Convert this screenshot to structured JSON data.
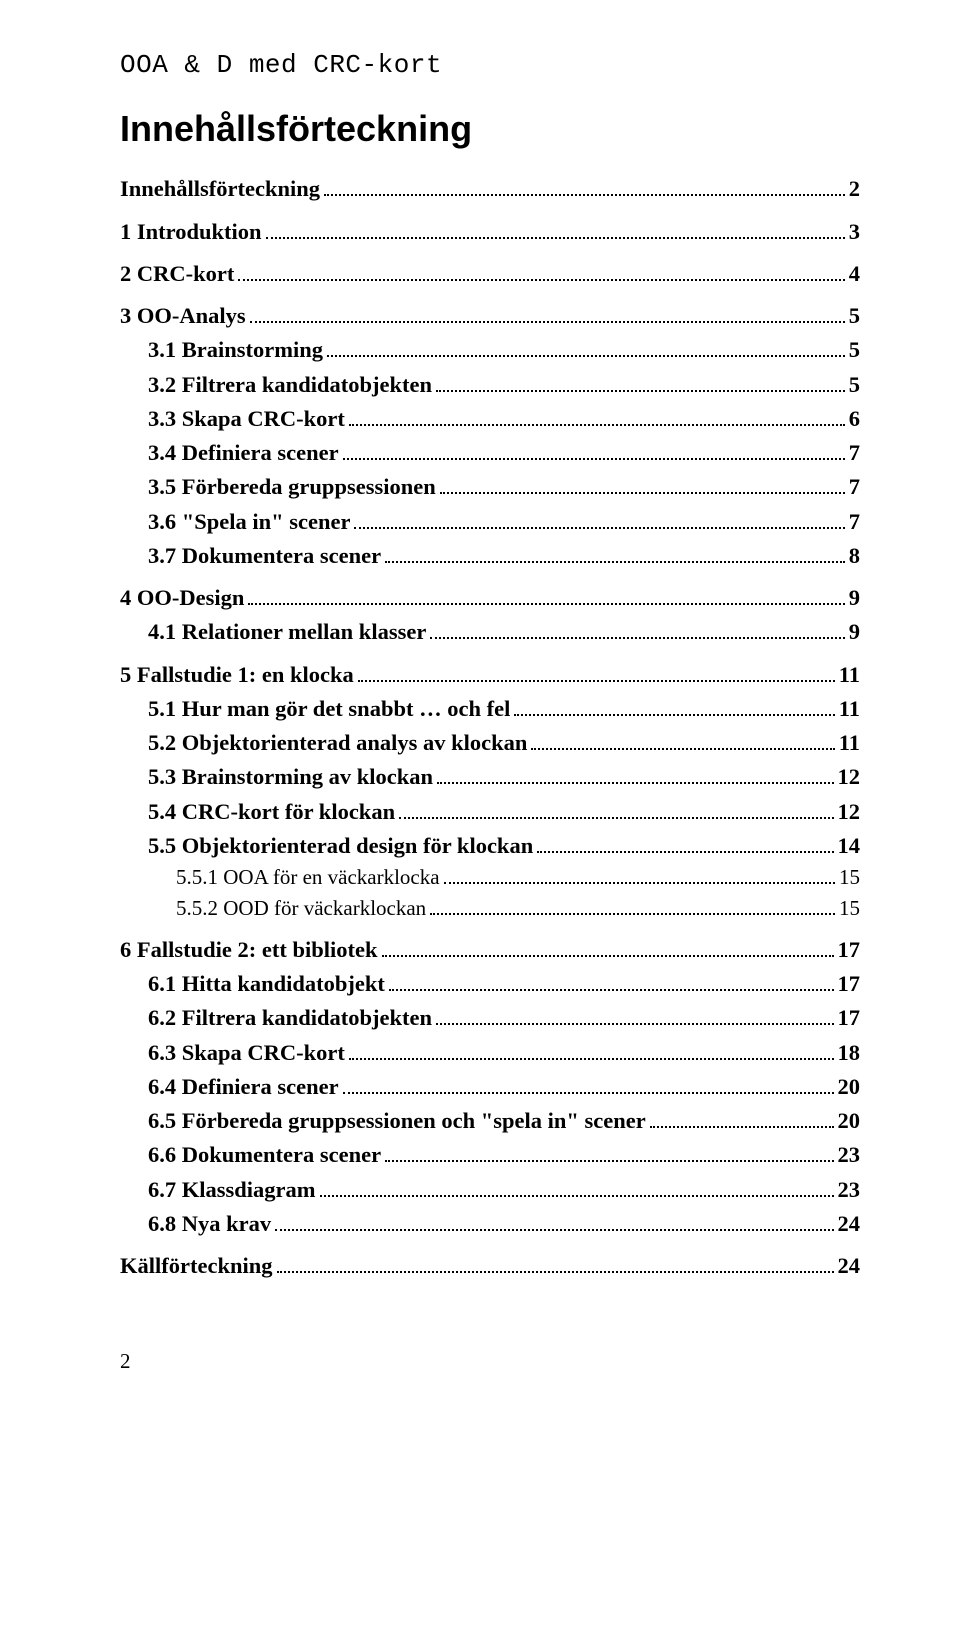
{
  "header": {
    "running_title": "OOA & D med CRC-kort"
  },
  "title": "Innehållsförteckning",
  "toc": [
    {
      "level": 1,
      "label": "Innehållsförteckning",
      "page": "2"
    },
    {
      "level": 1,
      "label": "1   Introduktion",
      "page": "3"
    },
    {
      "level": 1,
      "label": "2   CRC-kort",
      "page": "4"
    },
    {
      "level": 1,
      "label": "3   OO-Analys",
      "page": "5"
    },
    {
      "level": 2,
      "label": "3.1   Brainstorming",
      "page": "5"
    },
    {
      "level": 2,
      "label": "3.2   Filtrera kandidatobjekten",
      "page": "5"
    },
    {
      "level": 2,
      "label": "3.3   Skapa CRC-kort",
      "page": "6"
    },
    {
      "level": 2,
      "label": "3.4   Definiera scener",
      "page": "7"
    },
    {
      "level": 2,
      "label": "3.5   Förbereda gruppsessionen",
      "page": "7"
    },
    {
      "level": 2,
      "label": "3.6   \"Spela in\" scener",
      "page": "7"
    },
    {
      "level": 2,
      "label": "3.7   Dokumentera scener",
      "page": "8"
    },
    {
      "level": 1,
      "label": "4   OO-Design",
      "page": "9"
    },
    {
      "level": 2,
      "label": "4.1   Relationer mellan klasser",
      "page": "9"
    },
    {
      "level": 1,
      "label": "5   Fallstudie 1: en klocka",
      "page": "11"
    },
    {
      "level": 2,
      "label": "5.1   Hur man gör det snabbt … och fel",
      "page": "11"
    },
    {
      "level": 2,
      "label": "5.2   Objektorienterad analys av klockan",
      "page": "11"
    },
    {
      "level": 2,
      "label": "5.3   Brainstorming av klockan",
      "page": "12"
    },
    {
      "level": 2,
      "label": "5.4   CRC-kort för klockan",
      "page": "12"
    },
    {
      "level": 2,
      "label": "5.5   Objektorienterad design för klockan",
      "page": "14"
    },
    {
      "level": 3,
      "label": "5.5.1    OOA för en väckarklocka",
      "page": "15"
    },
    {
      "level": 3,
      "label": "5.5.2    OOD för väckarklockan",
      "page": "15"
    },
    {
      "level": 1,
      "label": "6   Fallstudie 2: ett bibliotek",
      "page": "17"
    },
    {
      "level": 2,
      "label": "6.1   Hitta kandidatobjekt",
      "page": "17"
    },
    {
      "level": 2,
      "label": "6.2   Filtrera kandidatobjekten",
      "page": "17"
    },
    {
      "level": 2,
      "label": "6.3   Skapa CRC-kort",
      "page": "18"
    },
    {
      "level": 2,
      "label": "6.4   Definiera scener",
      "page": "20"
    },
    {
      "level": 2,
      "label": "6.5   Förbereda gruppsessionen och \"spela in\" scener",
      "page": "20"
    },
    {
      "level": 2,
      "label": "6.6   Dokumentera scener",
      "page": "23"
    },
    {
      "level": 2,
      "label": "6.7   Klassdiagram",
      "page": "23"
    },
    {
      "level": 2,
      "label": "6.8   Nya krav",
      "page": "24"
    },
    {
      "level": 1,
      "label": "Källförteckning",
      "page": "24"
    }
  ],
  "footer": {
    "page_number": "2"
  }
}
